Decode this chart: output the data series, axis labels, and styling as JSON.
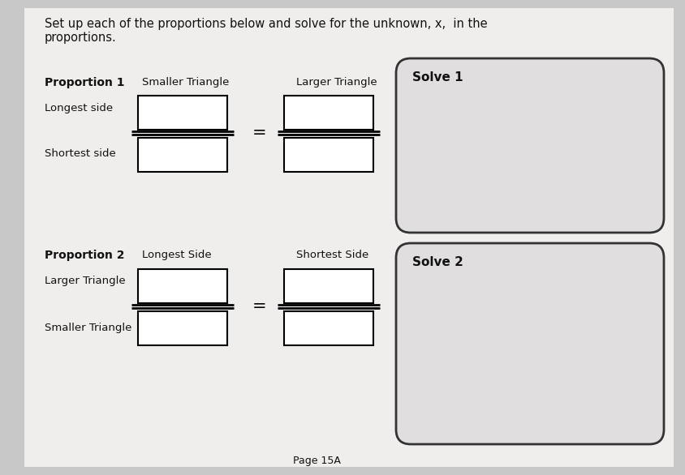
{
  "title_text": "Set up each of the proportions below and solve for the unknown, x,  in the\nproportions.",
  "title_fontsize": 10.5,
  "page_bg": "#c8c8c8",
  "content_bg": "#e8e6e4",
  "box_facecolor": "#ffffff",
  "box_edgecolor": "#000000",
  "solve_facecolor": "#e0dede",
  "solve_edgecolor": "#333333",
  "prop1_label": "Proportion 1",
  "prop1_col1": "Smaller Triangle",
  "prop1_col2": "Larger Triangle",
  "prop1_row1": "Longest side",
  "prop1_row2": "Shortest side",
  "prop2_label": "Proportion 2",
  "prop2_col1": "Longest Side",
  "prop2_col2": "Shortest Side",
  "prop2_row1": "Larger Triangle",
  "prop2_row2": "Smaller Triangle",
  "solve1_label": "Solve 1",
  "solve2_label": "Solve 2",
  "page_label": "Page 15A",
  "label_fontsize": 9.5,
  "bold_fontsize": 10,
  "text_color": "#111111"
}
